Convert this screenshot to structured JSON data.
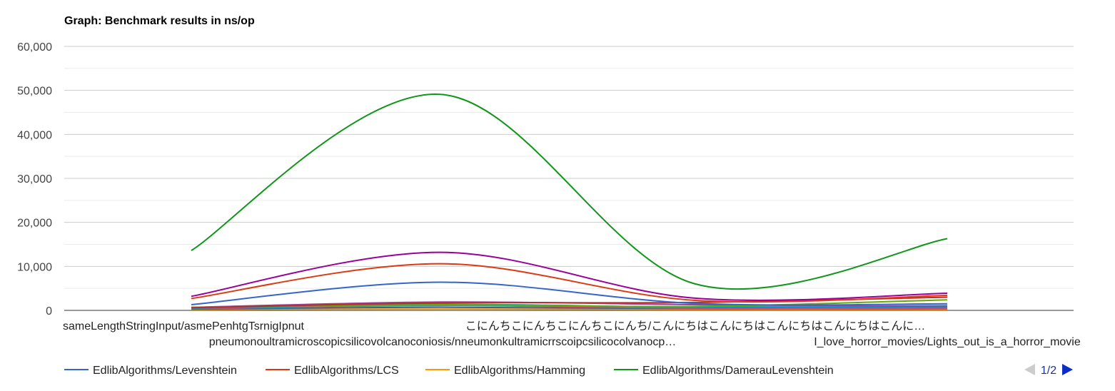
{
  "chart_data": {
    "type": "line",
    "title": "Graph: Benchmark results in ns/op",
    "xlabel": "",
    "ylabel": "",
    "ylim": [
      0,
      60000
    ],
    "y_ticks": [
      "0",
      "10,000",
      "20,000",
      "30,000",
      "40,000",
      "50,000",
      "60,000"
    ],
    "y_tick_values": [
      0,
      10000,
      20000,
      30000,
      40000,
      50000,
      60000
    ],
    "grid": true,
    "minor_grid": true,
    "curve": "smooth",
    "legend_position": "bottom",
    "categories": [
      "sameLengthStringInput/asmePenhtgTsrnigIpnut",
      "pneumonoultramicroscopicsilicovolcanoconiosis/nneumonkultramicrrscoipcsilicocolvanocp…",
      "こにんちこにんちこにんちこにんち/こんにちはこんにちはこんにちはこんにちはこんに…",
      "I_love_horror_movies/Lights_out_is_a_horror_movie"
    ],
    "series": [
      {
        "name": "EdlibAlgorithms/Levenshtein",
        "color": "#3366cc",
        "values": [
          1300,
          6400,
          1600,
          1500
        ]
      },
      {
        "name": "EdlibAlgorithms/LCS",
        "color": "#dc3912",
        "values": [
          2700,
          10600,
          2300,
          3400
        ]
      },
      {
        "name": "EdlibAlgorithms/Hamming",
        "color": "#ff9900",
        "values": [
          200,
          300,
          200,
          200
        ]
      },
      {
        "name": "EdlibAlgorithms/DamerauLevenshtein",
        "color": "#109618",
        "values": [
          13600,
          49100,
          6100,
          16300
        ]
      },
      {
        "color": "#990099",
        "values": [
          3200,
          13200,
          2800,
          3900
        ]
      },
      {
        "color": "#0099c6",
        "values": [
          500,
          1400,
          700,
          700
        ]
      },
      {
        "color": "#dd4477",
        "values": [
          400,
          1100,
          500,
          500
        ]
      },
      {
        "color": "#66aa00",
        "values": [
          700,
          1300,
          900,
          2400
        ]
      },
      {
        "color": "#b82e2e",
        "values": [
          600,
          1700,
          1800,
          3000
        ]
      },
      {
        "color": "#316395",
        "values": [
          300,
          700,
          400,
          400
        ]
      },
      {
        "color": "#994499",
        "values": [
          700,
          1900,
          1300,
          900
        ]
      },
      {
        "color": "#22aa99",
        "values": [
          500,
          1200,
          800,
          1100
        ]
      }
    ],
    "legend_visible_count": 4,
    "pager": {
      "label": "1/2",
      "prev_color": "#cccccc",
      "next_color": "#0d2ec4"
    }
  }
}
